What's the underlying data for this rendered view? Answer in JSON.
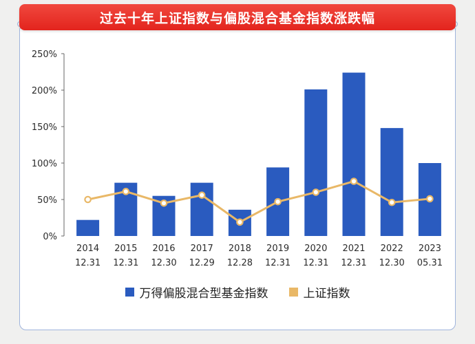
{
  "title": "过去十年上证指数与偏股混合基金指数涨跌幅",
  "colors": {
    "bar": "#2a5bbf",
    "line": "#e9b867",
    "title_bg": "#e62f27",
    "border": "#9fb3dc"
  },
  "chart_data": {
    "type": "bar",
    "categories": [
      [
        "2014",
        "12.31"
      ],
      [
        "2015",
        "12.31"
      ],
      [
        "2016",
        "12.30"
      ],
      [
        "2017",
        "12.29"
      ],
      [
        "2018",
        "12.28"
      ],
      [
        "2019",
        "12.31"
      ],
      [
        "2020",
        "12.31"
      ],
      [
        "2021",
        "12.31"
      ],
      [
        "2022",
        "12.30"
      ],
      [
        "2023",
        "05.31"
      ]
    ],
    "series": [
      {
        "name": "万得偏股混合型基金指数",
        "type": "bar",
        "values": [
          22,
          73,
          55,
          73,
          36,
          94,
          201,
          224,
          148,
          100
        ]
      },
      {
        "name": "上证指数",
        "type": "line",
        "values": [
          50,
          61,
          45,
          56,
          19,
          47,
          60,
          75,
          46,
          51
        ]
      }
    ],
    "y_ticks": [
      "0%",
      "50%",
      "100%",
      "150%",
      "200%",
      "250%"
    ],
    "ylim": [
      0,
      250
    ],
    "legend_position": "bottom",
    "grid": false
  }
}
